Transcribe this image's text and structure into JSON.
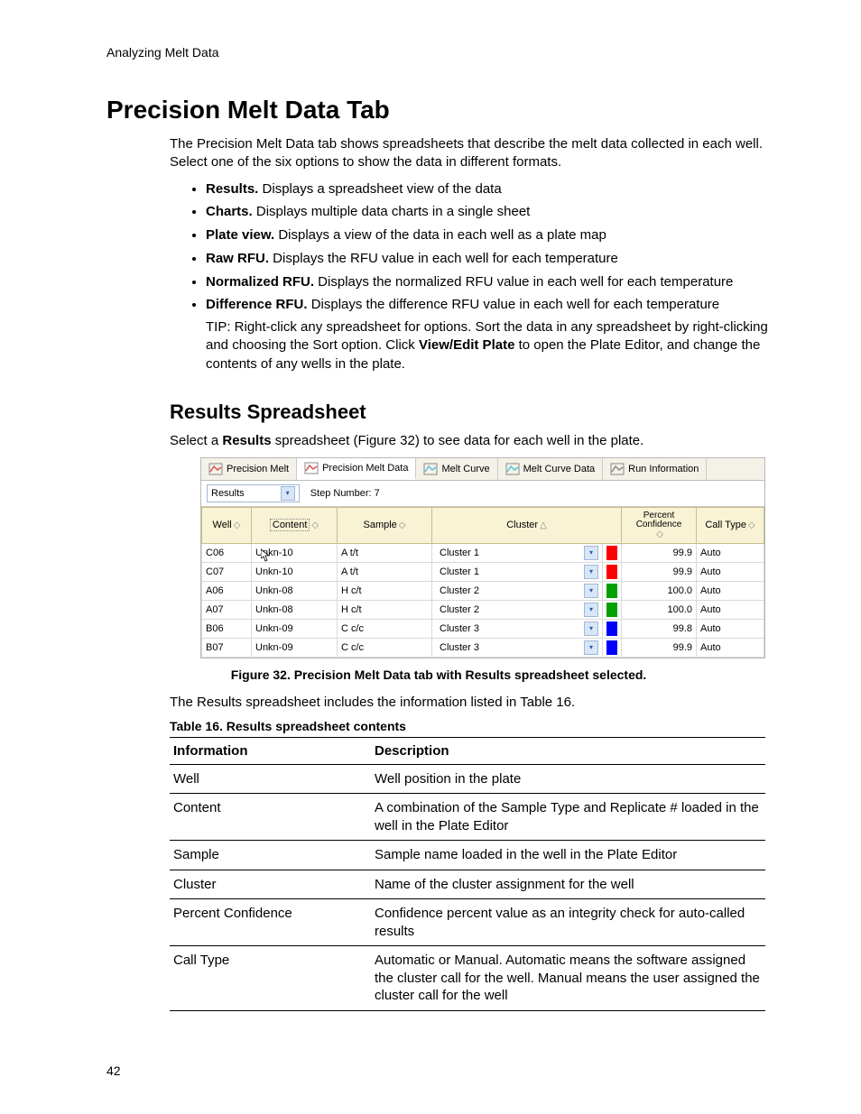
{
  "runningHead": "Analyzing Melt Data",
  "title": "Precision Melt Data Tab",
  "intro": "The Precision Melt Data tab shows spreadsheets that describe the melt data collected in each well. Select one of the six options to show the data in different formats.",
  "options": [
    {
      "name": "Results.",
      "desc": " Displays a spreadsheet view of the data"
    },
    {
      "name": "Charts.",
      "desc": " Displays multiple data charts in a single sheet"
    },
    {
      "name": "Plate view.",
      "desc": " Displays a view of the data in each well as a plate map"
    },
    {
      "name": "Raw RFU.",
      "desc": " Displays the RFU value in each well for each temperature"
    },
    {
      "name": "Normalized RFU.",
      "desc": " Displays the normalized RFU value in each well for each temperature"
    },
    {
      "name": "Difference RFU.",
      "desc": " Displays the difference RFU value in each well for each temperature"
    }
  ],
  "tip_pre": "TIP: Right-click any spreadsheet for options. Sort the data in any spreadsheet by right-clicking and choosing the Sort option. Click ",
  "tip_bold": "View/Edit Plate",
  "tip_post": " to open the Plate Editor, and change the contents of any wells in the plate.",
  "subTitle": "Results Spreadsheet",
  "resultsPara_pre": "Select a ",
  "resultsPara_bold": "Results",
  "resultsPara_post": " spreadsheet (Figure 32) to see data for each well in the plate.",
  "tabs": [
    "Precision Melt",
    "Precision Melt Data",
    "Melt Curve",
    "Melt Curve Data",
    "Run Information"
  ],
  "filter": {
    "dropdown": "Results",
    "stepLabel": "Step Number:  7"
  },
  "columns": [
    "Well",
    "Content",
    "Sample",
    "Cluster",
    "Percent Confidence",
    "Call Type"
  ],
  "rows": [
    {
      "well": "C06",
      "content": "Unkn-10",
      "sample": "A t/t",
      "cluster": "Cluster 1",
      "color": "#ff0000",
      "pct": "99.9",
      "call": "Auto",
      "cursor": true
    },
    {
      "well": "C07",
      "content": "Unkn-10",
      "sample": "A t/t",
      "cluster": "Cluster 1",
      "color": "#ff0000",
      "pct": "99.9",
      "call": "Auto"
    },
    {
      "well": "A06",
      "content": "Unkn-08",
      "sample": "H c/t",
      "cluster": "Cluster 2",
      "color": "#00a000",
      "pct": "100.0",
      "call": "Auto"
    },
    {
      "well": "A07",
      "content": "Unkn-08",
      "sample": "H c/t",
      "cluster": "Cluster 2",
      "color": "#00a000",
      "pct": "100.0",
      "call": "Auto"
    },
    {
      "well": "B06",
      "content": "Unkn-09",
      "sample": "C c/c",
      "cluster": "Cluster 3",
      "color": "#0000ff",
      "pct": "99.8",
      "call": "Auto"
    },
    {
      "well": "B07",
      "content": "Unkn-09",
      "sample": "C c/c",
      "cluster": "Cluster 3",
      "color": "#0000ff",
      "pct": "99.9",
      "call": "Auto"
    }
  ],
  "figureCaption": "Figure 32. Precision Melt Data tab with Results spreadsheet selected.",
  "afterFigure": "The Results spreadsheet includes the information listed in Table 16.",
  "tableCaption": "Table 16. Results spreadsheet contents",
  "descHeaders": {
    "info": "Information",
    "desc": "Description"
  },
  "descRows": [
    {
      "info": "Well",
      "desc": "Well position in the plate"
    },
    {
      "info": "Content",
      "desc": "A combination of the Sample Type and Replicate # loaded in the well in the Plate Editor"
    },
    {
      "info": "Sample",
      "desc": "Sample name loaded in the well in the Plate Editor"
    },
    {
      "info": "Cluster",
      "desc": "Name of the cluster assignment for the well"
    },
    {
      "info": "Percent Confidence",
      "desc": "Confidence percent value as an integrity check for auto-called results"
    },
    {
      "info": "Call Type",
      "desc": "Automatic or Manual. Automatic means the software assigned the cluster call for the well. Manual means the user assigned the cluster call for the well"
    }
  ],
  "pageNum": "42"
}
